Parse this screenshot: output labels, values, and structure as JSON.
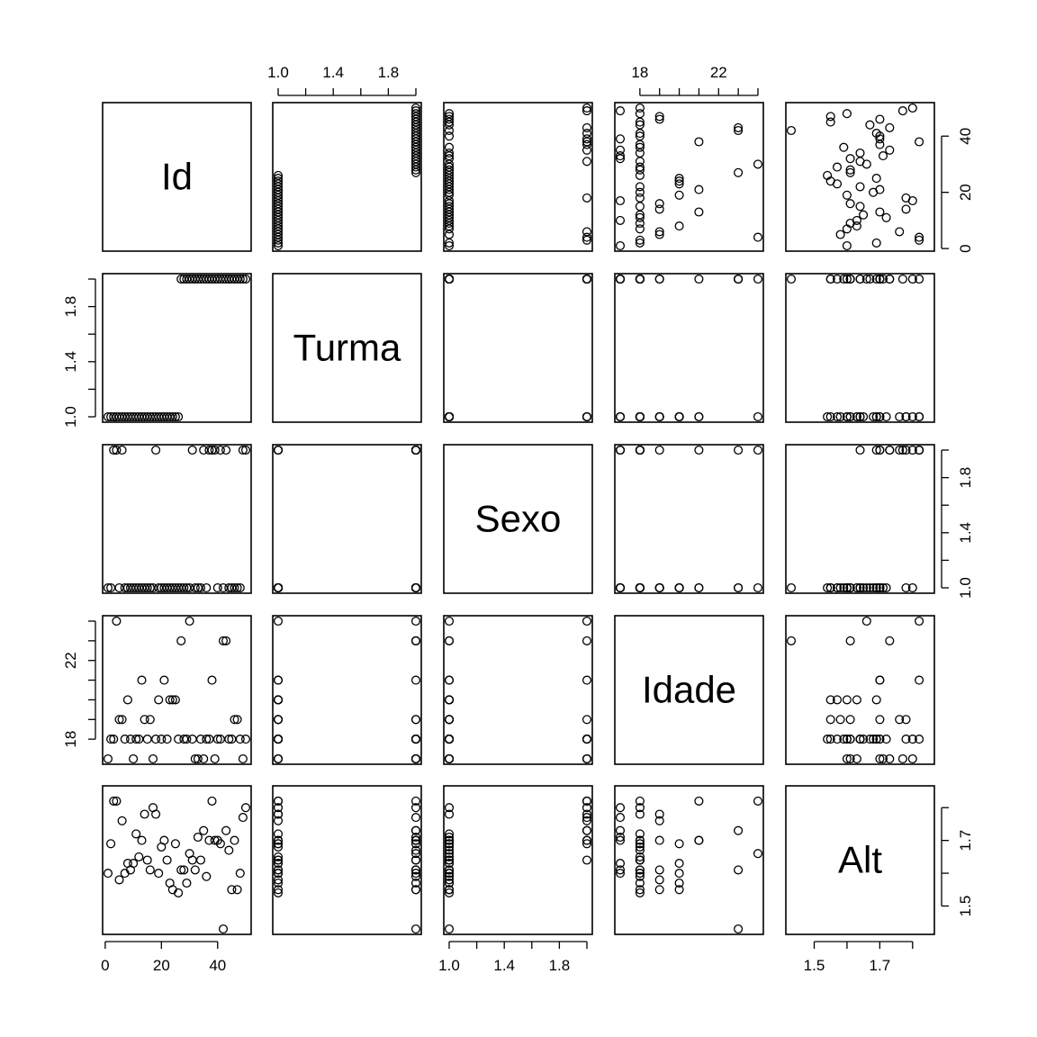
{
  "chart_data": {
    "type": "scatter",
    "variables": [
      "Id",
      "Turma",
      "Sexo",
      "Idade",
      "Alt"
    ],
    "ranges": {
      "Id": [
        1,
        50
      ],
      "Turma": [
        1,
        2
      ],
      "Sexo": [
        1,
        2
      ],
      "Idade": [
        17,
        24
      ],
      "Alt": [
        1.43,
        1.85
      ]
    },
    "ticks": {
      "Id": [
        0,
        20,
        40
      ],
      "Turma": [
        1.0,
        1.2,
        1.4,
        1.6,
        1.8,
        2.0
      ],
      "Sexo": [
        1.0,
        1.2,
        1.4,
        1.6,
        1.8,
        2.0
      ],
      "Idade": [
        18,
        19,
        20,
        21,
        22,
        23,
        24
      ],
      "Alt": [
        1.5,
        1.6,
        1.7,
        1.8
      ]
    },
    "tick_labels": {
      "Id": [
        "0",
        "20",
        "40"
      ],
      "Turma": [
        "1.0",
        "",
        "1.4",
        "",
        "1.8",
        ""
      ],
      "Sexo": [
        "1.0",
        "",
        "1.4",
        "",
        "1.8",
        ""
      ],
      "Idade": [
        "18",
        "",
        "",
        "",
        "22",
        "",
        ""
      ],
      "Alt": [
        "1.5",
        "",
        "1.7",
        ""
      ]
    },
    "observations": {
      "Id": [
        1,
        2,
        3,
        4,
        5,
        6,
        7,
        8,
        9,
        10,
        11,
        12,
        13,
        14,
        15,
        16,
        17,
        18,
        19,
        20,
        21,
        22,
        23,
        24,
        25,
        26,
        27,
        28,
        29,
        30,
        31,
        32,
        33,
        34,
        35,
        36,
        37,
        38,
        39,
        40,
        41,
        42,
        43,
        44,
        45,
        46,
        47,
        48,
        49,
        50
      ],
      "Turma": [
        1,
        1,
        1,
        1,
        1,
        1,
        1,
        1,
        1,
        1,
        1,
        1,
        1,
        1,
        1,
        1,
        1,
        1,
        1,
        1,
        1,
        1,
        1,
        1,
        1,
        1,
        2,
        2,
        2,
        2,
        2,
        2,
        2,
        2,
        2,
        2,
        2,
        2,
        2,
        2,
        2,
        2,
        2,
        2,
        2,
        2,
        2,
        2,
        2,
        2
      ],
      "Sexo": [
        1,
        1,
        2,
        2,
        1,
        2,
        1,
        1,
        1,
        1,
        1,
        1,
        1,
        1,
        1,
        1,
        1,
        2,
        1,
        1,
        1,
        1,
        1,
        1,
        1,
        1,
        1,
        1,
        1,
        1,
        2,
        1,
        1,
        1,
        2,
        1,
        2,
        2,
        2,
        1,
        2,
        1,
        2,
        1,
        1,
        1,
        1,
        1,
        2,
        2
      ],
      "Idade": [
        17,
        18,
        18,
        24,
        19,
        19,
        18,
        20,
        18,
        17,
        18,
        18,
        21,
        19,
        18,
        19,
        17,
        18,
        20,
        18,
        21,
        18,
        20,
        20,
        20,
        18,
        23,
        18,
        18,
        24,
        18,
        17,
        17,
        18,
        17,
        18,
        18,
        21,
        17,
        18,
        18,
        23,
        23,
        18,
        18,
        19,
        19,
        18,
        17,
        18
      ],
      "Alt": [
        1.6,
        1.69,
        1.82,
        1.82,
        1.58,
        1.76,
        1.6,
        1.63,
        1.61,
        1.63,
        1.72,
        1.65,
        1.7,
        1.78,
        1.64,
        1.61,
        1.8,
        1.78,
        1.6,
        1.68,
        1.7,
        1.64,
        1.57,
        1.55,
        1.69,
        1.54,
        1.61,
        1.61,
        1.57,
        1.66,
        1.64,
        1.61,
        1.71,
        1.64,
        1.73,
        1.59,
        1.7,
        1.82,
        1.7,
        1.7,
        1.69,
        1.43,
        1.73,
        1.67,
        1.55,
        1.7,
        1.55,
        1.6,
        1.77,
        1.8
      ]
    }
  }
}
